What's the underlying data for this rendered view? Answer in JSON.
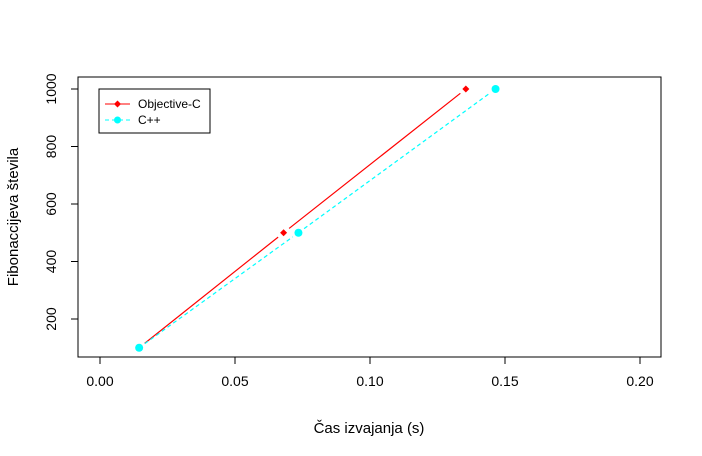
{
  "chart_data": {
    "type": "line",
    "title": "",
    "xlabel": "Čas izvajanja (s)",
    "ylabel": "Fibonaccijeva števila",
    "xlim": [
      0.0,
      0.2
    ],
    "ylim": [
      70,
      1030
    ],
    "x_ticks": [
      0.0,
      0.05,
      0.1,
      0.15,
      0.2
    ],
    "x_tick_labels": [
      "0.00",
      "0.05",
      "0.10",
      "0.15",
      "0.20"
    ],
    "y_ticks": [
      200,
      400,
      600,
      800,
      1000
    ],
    "y_tick_labels": [
      "200",
      "400",
      "600",
      "800",
      "1000"
    ],
    "grid": false,
    "legend_position": "top-left",
    "series": [
      {
        "name": "Objective-C",
        "color": "#ff0000",
        "line_style": "solid",
        "marker": "diamond",
        "points": [
          {
            "x": 0.0145,
            "y": 100
          },
          {
            "x": 0.068,
            "y": 500
          },
          {
            "x": 0.1355,
            "y": 1000
          }
        ]
      },
      {
        "name": "C++",
        "color": "#00ffff",
        "line_style": "dashed",
        "marker": "circle",
        "points": [
          {
            "x": 0.0145,
            "y": 100
          },
          {
            "x": 0.0735,
            "y": 500
          },
          {
            "x": 0.1465,
            "y": 1000
          }
        ]
      }
    ]
  }
}
